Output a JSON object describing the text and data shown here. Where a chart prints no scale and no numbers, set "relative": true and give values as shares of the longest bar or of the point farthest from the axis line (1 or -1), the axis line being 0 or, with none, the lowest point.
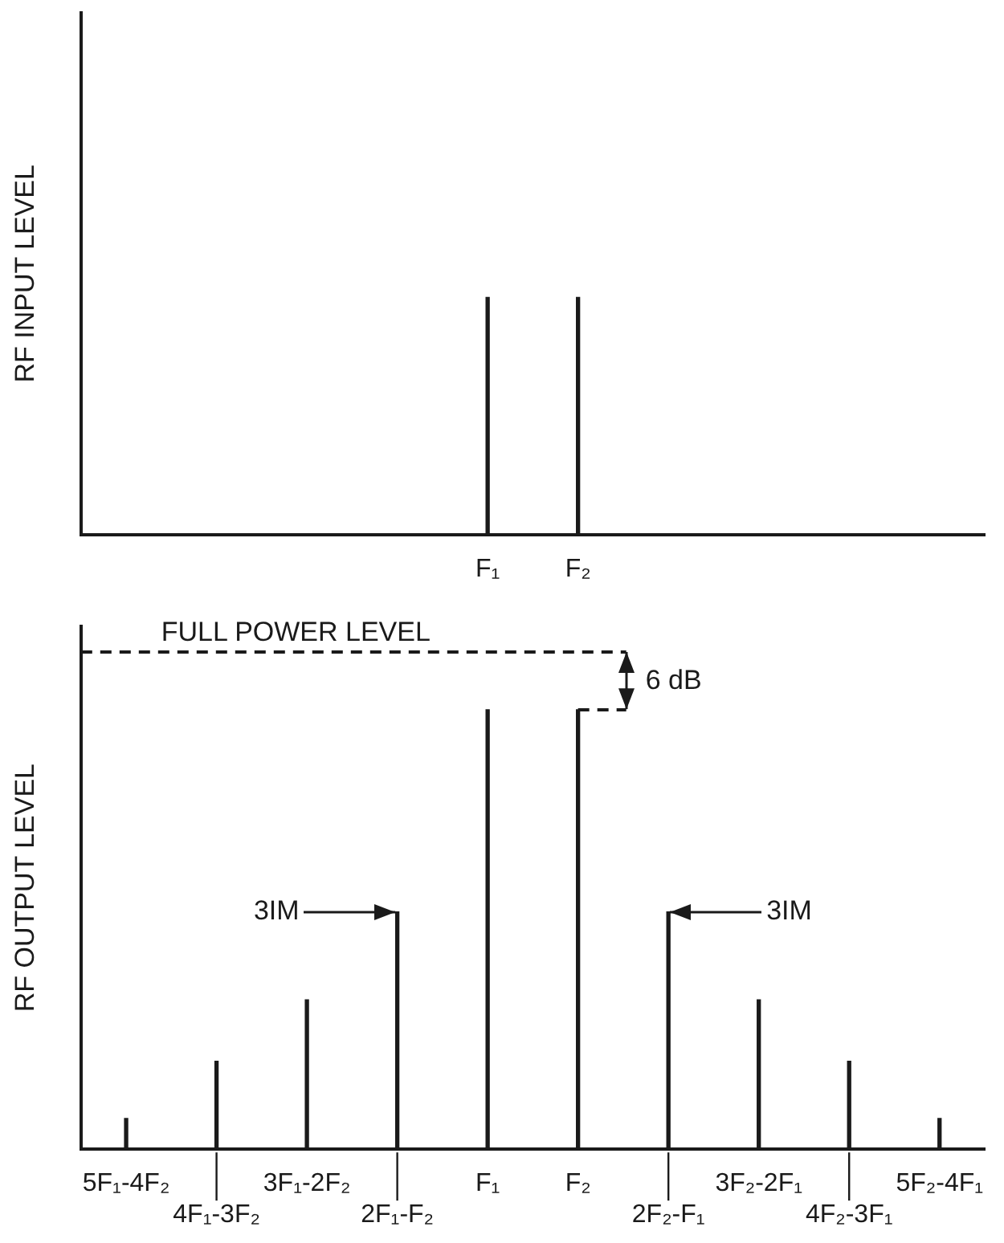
{
  "chart_data": [
    {
      "type": "bar",
      "ylabel": "RF INPUT LEVEL",
      "categories": [
        null,
        null,
        null,
        null,
        "F₁",
        "F₂",
        null,
        null,
        null,
        null
      ],
      "values": [
        null,
        null,
        null,
        null,
        1,
        1,
        null,
        null,
        null,
        null
      ],
      "color": "#1a1a1a",
      "relative": true,
      "legend": false,
      "grid": false
    },
    {
      "type": "bar",
      "ylabel": "RF OUTPUT LEVEL",
      "categories": [
        "5F₁-4F₂",
        "4F₁-3F₂",
        "3F₁-2F₂",
        "2F₁-F₂",
        "F₁",
        "F₂",
        "2F₂-F₁",
        "3F₂-2F₁",
        "4F₂-3F₁",
        "5F₂-4F₁"
      ],
      "values": [
        0.07,
        0.2,
        0.34,
        0.54,
        1,
        1,
        0.54,
        0.34,
        0.2,
        0.07
      ],
      "color": "#1a1a1a",
      "relative": true,
      "legend": false,
      "grid": false,
      "ref_lines": [
        {
          "axis": "y",
          "value": 1.13,
          "label": "FULL POWER LEVEL",
          "line_style": "dashed"
        }
      ],
      "annotations": [
        "3IM",
        "3IM",
        "6 dB"
      ]
    }
  ]
}
